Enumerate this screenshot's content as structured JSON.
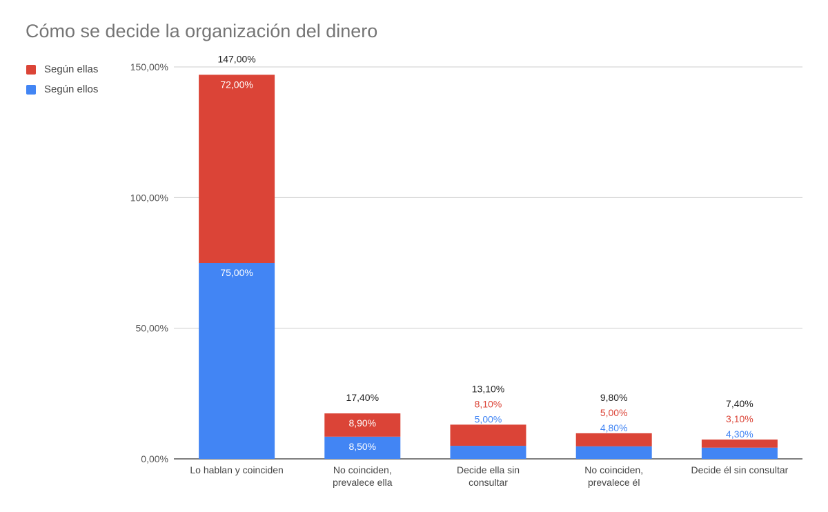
{
  "chart_data": {
    "type": "bar",
    "stacked": true,
    "title": "Cómo se decide la organización del dinero",
    "categories": [
      [
        "Lo hablan y coinciden"
      ],
      [
        "No coinciden,",
        "prevalece ella"
      ],
      [
        "Decide ella sin",
        "consultar"
      ],
      [
        "No coinciden,",
        "prevalece él"
      ],
      [
        "Decide él sin consultar"
      ]
    ],
    "series": [
      {
        "name": "Según ellos",
        "color": "#4285f4",
        "values": [
          75.0,
          8.5,
          5.0,
          4.8,
          4.3
        ],
        "labels": [
          "75,00%",
          "8,50%",
          "5,00%",
          "4,80%",
          "4,30%"
        ]
      },
      {
        "name": "Según ellas",
        "color": "#db4437",
        "values": [
          72.0,
          8.9,
          8.1,
          5.0,
          3.1
        ],
        "labels": [
          "72,00%",
          "8,90%",
          "8,10%",
          "5,00%",
          "3,10%"
        ]
      }
    ],
    "totals": [
      147.0,
      17.4,
      13.1,
      9.8,
      7.4
    ],
    "total_labels": [
      "147,00%",
      "17,40%",
      "13,10%",
      "9,80%",
      "7,40%"
    ],
    "ylim": [
      0,
      150
    ],
    "yticks": [
      0,
      50,
      100,
      150
    ],
    "ytick_labels": [
      "0,00%",
      "50,00%",
      "100,00%",
      "150,00%"
    ],
    "xlabel": "",
    "ylabel": "",
    "legend_position": "top-left",
    "grid": true
  }
}
